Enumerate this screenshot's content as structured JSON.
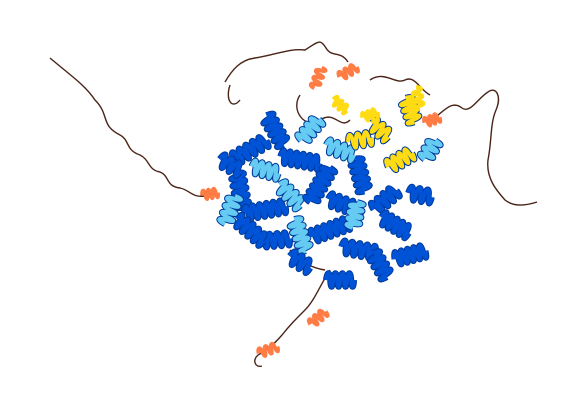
{
  "image": {
    "subject": "protein-structure-cartoon",
    "colors": {
      "very_high": "#0053D6",
      "confident": "#65CBF3",
      "low": "#FFDB13",
      "very_low": "#FF7D45",
      "coil": "#5a2a1a"
    }
  }
}
